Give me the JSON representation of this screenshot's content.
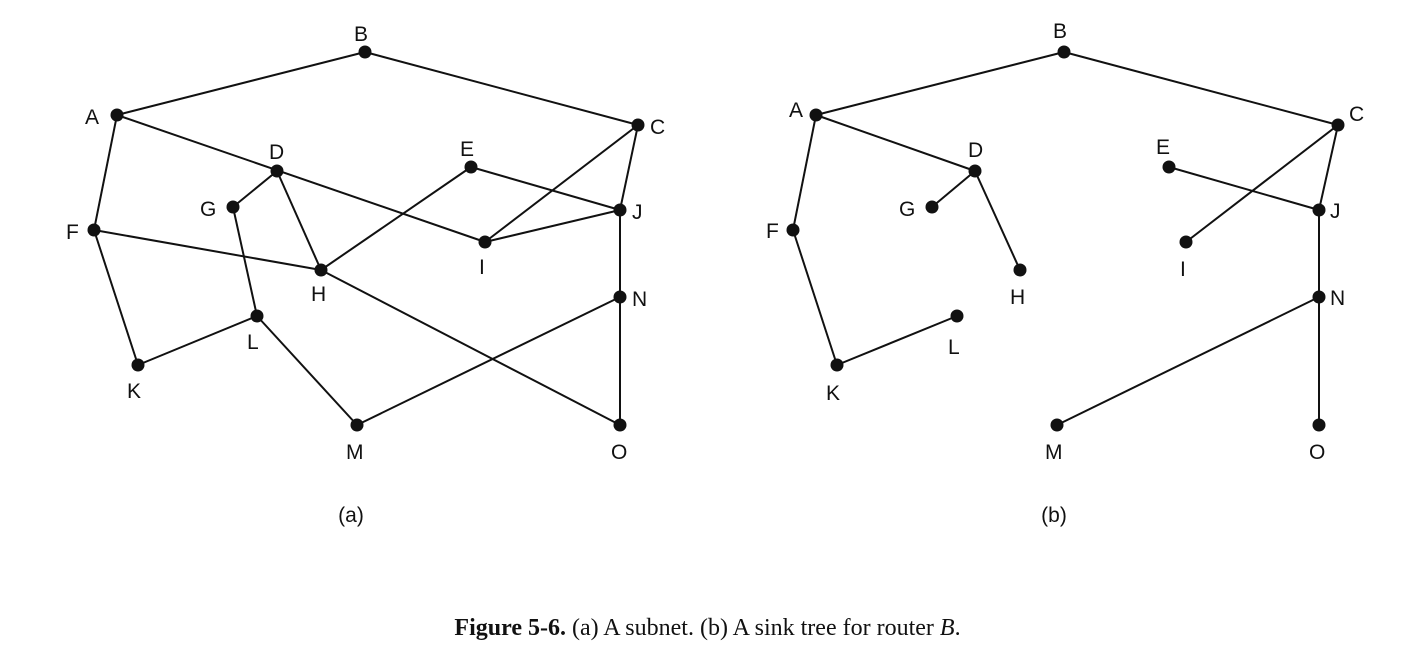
{
  "panels": [
    {
      "id": "a",
      "label": "(a)",
      "nodes": [
        "A",
        "B",
        "C",
        "D",
        "E",
        "F",
        "G",
        "H",
        "I",
        "J",
        "K",
        "L",
        "M",
        "N",
        "O"
      ],
      "edges": [
        [
          "A",
          "B"
        ],
        [
          "B",
          "C"
        ],
        [
          "A",
          "F"
        ],
        [
          "A",
          "I"
        ],
        [
          "C",
          "I"
        ],
        [
          "C",
          "J"
        ],
        [
          "D",
          "G"
        ],
        [
          "D",
          "H"
        ],
        [
          "E",
          "H"
        ],
        [
          "E",
          "J"
        ],
        [
          "F",
          "H"
        ],
        [
          "F",
          "K"
        ],
        [
          "G",
          "L"
        ],
        [
          "H",
          "O"
        ],
        [
          "I",
          "J"
        ],
        [
          "J",
          "N"
        ],
        [
          "K",
          "L"
        ],
        [
          "L",
          "M"
        ],
        [
          "M",
          "N"
        ],
        [
          "N",
          "O"
        ]
      ]
    },
    {
      "id": "b",
      "label": "(b)",
      "nodes": [
        "A",
        "B",
        "C",
        "D",
        "E",
        "F",
        "G",
        "H",
        "I",
        "J",
        "K",
        "L",
        "M",
        "N",
        "O"
      ],
      "edges": [
        [
          "A",
          "B"
        ],
        [
          "B",
          "C"
        ],
        [
          "A",
          "D"
        ],
        [
          "A",
          "F"
        ],
        [
          "D",
          "G"
        ],
        [
          "D",
          "H"
        ],
        [
          "F",
          "K"
        ],
        [
          "K",
          "L"
        ],
        [
          "C",
          "I"
        ],
        [
          "C",
          "J"
        ],
        [
          "E",
          "J"
        ],
        [
          "J",
          "N"
        ],
        [
          "N",
          "M"
        ],
        [
          "N",
          "O"
        ]
      ]
    }
  ],
  "caption": {
    "number": "Figure 5-6.",
    "text_before": " (a) A subnet. (b) A sink tree for router ",
    "router": "B",
    "text_after": "."
  }
}
